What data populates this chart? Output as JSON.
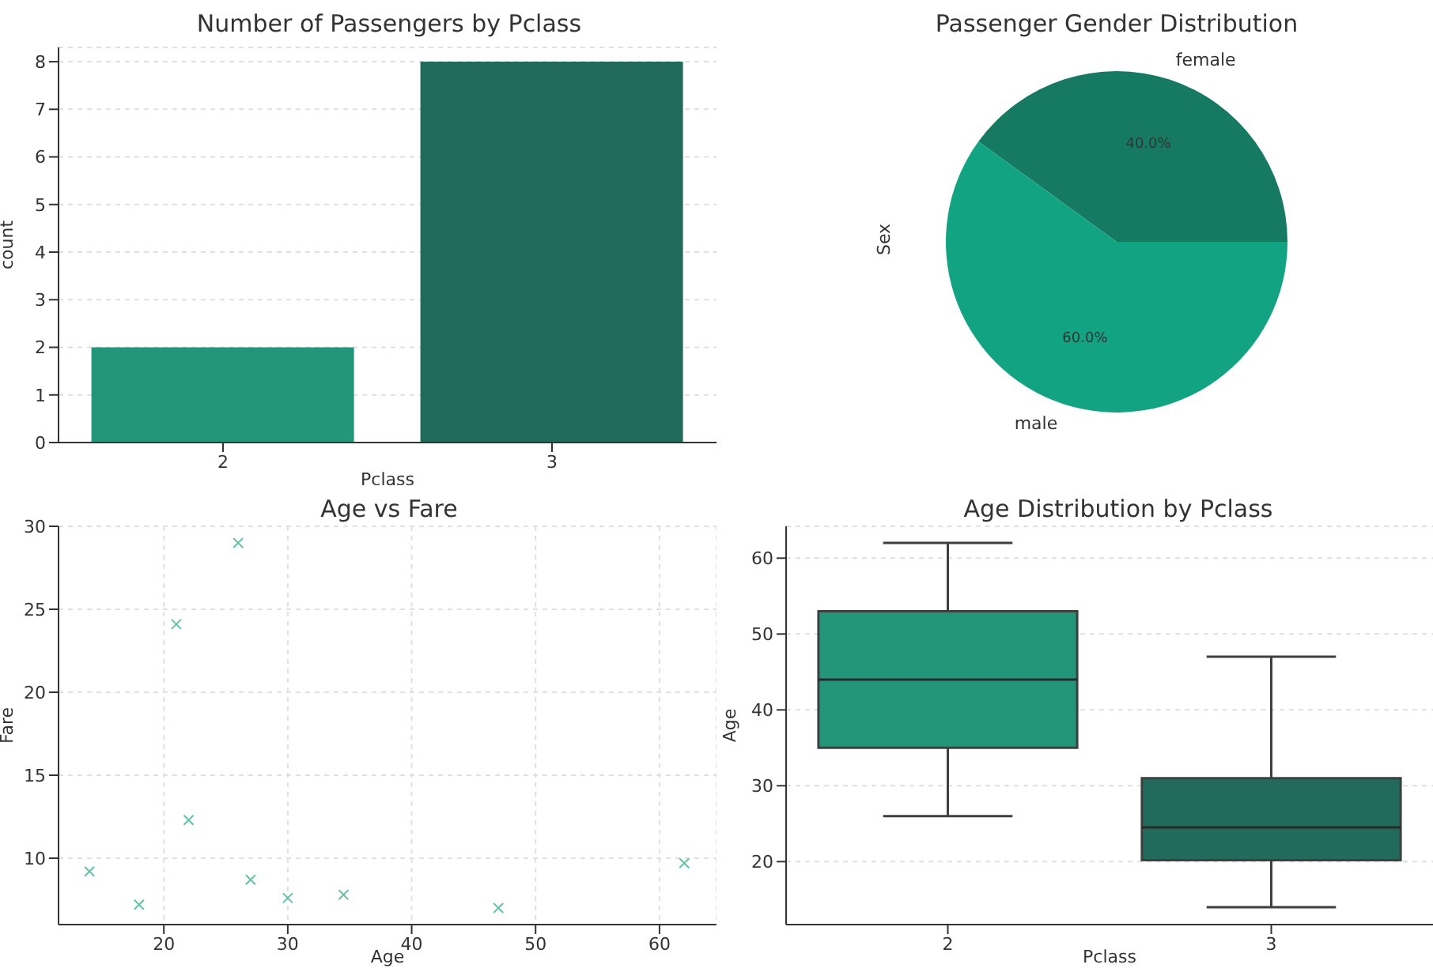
{
  "chart_data": [
    {
      "type": "bar",
      "title": "Number of Passengers by Pclass",
      "xlabel": "Pclass",
      "ylabel": "count",
      "categories": [
        "2",
        "3"
      ],
      "values": [
        2,
        8
      ],
      "colors": [
        "#239579",
        "#226b5c"
      ],
      "ylim": [
        0,
        8.3
      ],
      "yticks": [
        0,
        1,
        2,
        3,
        4,
        5,
        6,
        7,
        8
      ],
      "grid": "y"
    },
    {
      "type": "pie",
      "title": "Passenger Gender Distribution",
      "ylabel": "Sex",
      "categories": [
        "female",
        "male"
      ],
      "values": [
        40,
        60
      ],
      "colors": [
        "#167a62",
        "#12a482"
      ],
      "value_labels": [
        "40.0%",
        "60.0%"
      ]
    },
    {
      "type": "scatter",
      "title": "Age vs Fare",
      "xlabel": "Age",
      "ylabel": "Fare",
      "x": [
        14,
        18,
        21,
        22,
        26,
        27,
        30,
        34.5,
        47,
        62
      ],
      "values": [
        9.2,
        7.2,
        24.1,
        12.3,
        29,
        8.7,
        7.6,
        7.8,
        7.0,
        9.7
      ],
      "color": "#66c2a5",
      "marker": "cross",
      "xlim": [
        11.5,
        64.6
      ],
      "xticks": [
        20,
        30,
        40,
        50,
        60
      ],
      "ylim": [
        6,
        30
      ],
      "yticks": [
        10,
        15,
        20,
        25,
        30
      ],
      "grid": true
    },
    {
      "type": "box",
      "title": "Age Distribution by Pclass",
      "xlabel": "Pclass",
      "ylabel": "Age",
      "categories": [
        "2",
        "3"
      ],
      "colors": [
        "#239579",
        "#226b5c"
      ],
      "boxes": [
        {
          "low": 26,
          "q1": 35,
          "median": 44,
          "q3": 53,
          "high": 62
        },
        {
          "low": 14,
          "q1": 20.2,
          "median": 24.5,
          "q3": 31,
          "high": 47
        }
      ],
      "ylim": [
        11.7,
        64.2
      ],
      "yticks": [
        20,
        30,
        40,
        50,
        60
      ],
      "grid": "y"
    }
  ]
}
